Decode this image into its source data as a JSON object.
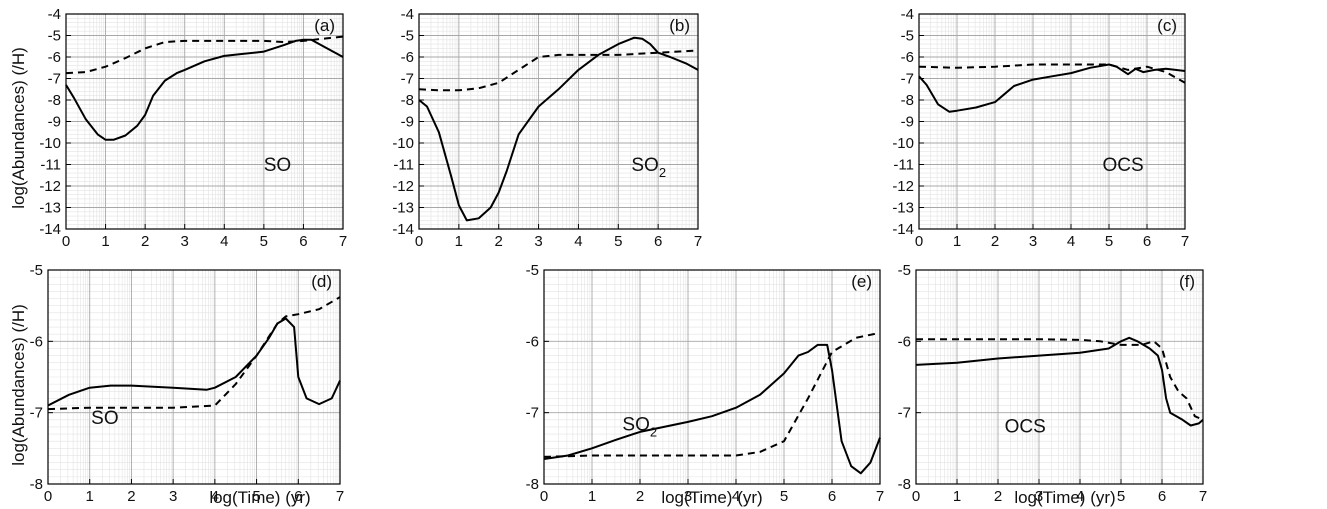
{
  "figure": {
    "ylabel": "log(Abundances) (/H)",
    "xlabel": "log(Time) (yr)"
  },
  "chart_data": [
    {
      "type": "line",
      "panel": "(a)",
      "species": "SO",
      "species_sub": "",
      "xlim": [
        0,
        7
      ],
      "ylim": [
        -14,
        -4
      ],
      "xticks": [
        0,
        1,
        2,
        3,
        4,
        5,
        6,
        7
      ],
      "yticks": [
        -14,
        -13,
        -12,
        -11,
        -10,
        -9,
        -8,
        -7,
        -6,
        -5,
        -4
      ],
      "grid": true,
      "series": [
        {
          "style": "solid",
          "points": [
            [
              0,
              -7.3
            ],
            [
              0.2,
              -7.9
            ],
            [
              0.5,
              -8.9
            ],
            [
              0.8,
              -9.6
            ],
            [
              1.0,
              -9.85
            ],
            [
              1.2,
              -9.85
            ],
            [
              1.5,
              -9.65
            ],
            [
              1.8,
              -9.2
            ],
            [
              2.0,
              -8.7
            ],
            [
              2.2,
              -7.8
            ],
            [
              2.5,
              -7.1
            ],
            [
              2.8,
              -6.75
            ],
            [
              3.0,
              -6.6
            ],
            [
              3.5,
              -6.2
            ],
            [
              4.0,
              -5.95
            ],
            [
              4.5,
              -5.85
            ],
            [
              5.0,
              -5.75
            ],
            [
              5.5,
              -5.45
            ],
            [
              5.8,
              -5.25
            ],
            [
              6.0,
              -5.2
            ],
            [
              6.2,
              -5.2
            ],
            [
              6.5,
              -5.5
            ],
            [
              7.0,
              -6.0
            ]
          ]
        },
        {
          "style": "dashed",
          "points": [
            [
              0,
              -6.75
            ],
            [
              0.5,
              -6.7
            ],
            [
              1.0,
              -6.45
            ],
            [
              1.5,
              -6.05
            ],
            [
              2.0,
              -5.6
            ],
            [
              2.5,
              -5.3
            ],
            [
              3.0,
              -5.25
            ],
            [
              4.0,
              -5.25
            ],
            [
              5.0,
              -5.25
            ],
            [
              5.5,
              -5.3
            ],
            [
              6.0,
              -5.25
            ],
            [
              6.5,
              -5.15
            ],
            [
              7.0,
              -5.05
            ]
          ]
        }
      ]
    },
    {
      "type": "line",
      "panel": "(b)",
      "species": "SO",
      "species_sub": "2",
      "xlim": [
        0,
        7
      ],
      "ylim": [
        -14,
        -4
      ],
      "xticks": [
        0,
        1,
        2,
        3,
        4,
        5,
        6,
        7
      ],
      "yticks": [
        -14,
        -13,
        -12,
        -11,
        -10,
        -9,
        -8,
        -7,
        -6,
        -5,
        -4
      ],
      "grid": true,
      "series": [
        {
          "style": "solid",
          "points": [
            [
              0,
              -8.0
            ],
            [
              0.2,
              -8.3
            ],
            [
              0.5,
              -9.5
            ],
            [
              0.8,
              -11.5
            ],
            [
              1.0,
              -12.9
            ],
            [
              1.2,
              -13.6
            ],
            [
              1.5,
              -13.5
            ],
            [
              1.8,
              -13.0
            ],
            [
              2.0,
              -12.3
            ],
            [
              2.2,
              -11.3
            ],
            [
              2.5,
              -9.6
            ],
            [
              3.0,
              -8.3
            ],
            [
              3.5,
              -7.5
            ],
            [
              4.0,
              -6.6
            ],
            [
              4.5,
              -5.9
            ],
            [
              5.0,
              -5.4
            ],
            [
              5.4,
              -5.1
            ],
            [
              5.6,
              -5.15
            ],
            [
              5.8,
              -5.4
            ],
            [
              6.0,
              -5.8
            ],
            [
              6.3,
              -6.0
            ],
            [
              6.7,
              -6.3
            ],
            [
              7.0,
              -6.6
            ]
          ]
        },
        {
          "style": "dashed",
          "points": [
            [
              0,
              -7.5
            ],
            [
              0.5,
              -7.55
            ],
            [
              1.0,
              -7.55
            ],
            [
              1.5,
              -7.45
            ],
            [
              2.0,
              -7.2
            ],
            [
              2.5,
              -6.6
            ],
            [
              3.0,
              -6.0
            ],
            [
              3.5,
              -5.9
            ],
            [
              4.0,
              -5.9
            ],
            [
              5.0,
              -5.9
            ],
            [
              6.0,
              -5.8
            ],
            [
              7.0,
              -5.7
            ]
          ]
        }
      ]
    },
    {
      "type": "line",
      "panel": "(c)",
      "species": "OCS",
      "species_sub": "",
      "xlim": [
        0,
        7
      ],
      "ylim": [
        -14,
        -4
      ],
      "xticks": [
        0,
        1,
        2,
        3,
        4,
        5,
        6,
        7
      ],
      "yticks": [
        -14,
        -13,
        -12,
        -11,
        -10,
        -9,
        -8,
        -7,
        -6,
        -5,
        -4
      ],
      "grid": true,
      "series": [
        {
          "style": "solid",
          "points": [
            [
              0,
              -6.9
            ],
            [
              0.2,
              -7.3
            ],
            [
              0.5,
              -8.2
            ],
            [
              0.8,
              -8.55
            ],
            [
              1.0,
              -8.5
            ],
            [
              1.5,
              -8.35
            ],
            [
              2.0,
              -8.1
            ],
            [
              2.2,
              -7.8
            ],
            [
              2.5,
              -7.35
            ],
            [
              3.0,
              -7.05
            ],
            [
              3.5,
              -6.9
            ],
            [
              4.0,
              -6.75
            ],
            [
              4.5,
              -6.5
            ],
            [
              5.0,
              -6.35
            ],
            [
              5.2,
              -6.45
            ],
            [
              5.5,
              -6.8
            ],
            [
              5.7,
              -6.55
            ],
            [
              5.9,
              -6.7
            ],
            [
              6.2,
              -6.6
            ],
            [
              6.5,
              -6.55
            ],
            [
              7.0,
              -6.65
            ]
          ]
        },
        {
          "style": "dashed",
          "points": [
            [
              0,
              -6.45
            ],
            [
              1.0,
              -6.5
            ],
            [
              2.0,
              -6.45
            ],
            [
              3.0,
              -6.35
            ],
            [
              4.0,
              -6.35
            ],
            [
              5.0,
              -6.35
            ],
            [
              5.5,
              -6.6
            ],
            [
              6.0,
              -6.45
            ],
            [
              6.5,
              -6.7
            ],
            [
              7.0,
              -7.2
            ]
          ]
        }
      ]
    },
    {
      "type": "line",
      "panel": "(d)",
      "species": "SO",
      "species_sub": "",
      "xlim": [
        0,
        7
      ],
      "ylim": [
        -8,
        -5
      ],
      "xticks": [
        0,
        1,
        2,
        3,
        4,
        5,
        6,
        7
      ],
      "yticks": [
        -8,
        -7,
        -6,
        -5
      ],
      "grid": true,
      "series": [
        {
          "style": "solid",
          "points": [
            [
              0,
              -6.9
            ],
            [
              0.5,
              -6.75
            ],
            [
              1.0,
              -6.65
            ],
            [
              1.5,
              -6.62
            ],
            [
              2.0,
              -6.62
            ],
            [
              3.0,
              -6.65
            ],
            [
              3.8,
              -6.68
            ],
            [
              4.0,
              -6.65
            ],
            [
              4.5,
              -6.5
            ],
            [
              5.0,
              -6.2
            ],
            [
              5.3,
              -5.95
            ],
            [
              5.5,
              -5.75
            ],
            [
              5.7,
              -5.68
            ],
            [
              5.9,
              -5.8
            ],
            [
              6.0,
              -6.5
            ],
            [
              6.2,
              -6.8
            ],
            [
              6.5,
              -6.88
            ],
            [
              6.8,
              -6.8
            ],
            [
              7.0,
              -6.55
            ]
          ]
        },
        {
          "style": "dashed",
          "points": [
            [
              0,
              -6.95
            ],
            [
              1.0,
              -6.93
            ],
            [
              2.0,
              -6.93
            ],
            [
              3.0,
              -6.93
            ],
            [
              4.0,
              -6.9
            ],
            [
              4.5,
              -6.6
            ],
            [
              5.0,
              -6.2
            ],
            [
              5.5,
              -5.75
            ],
            [
              5.7,
              -5.65
            ],
            [
              6.0,
              -5.62
            ],
            [
              6.5,
              -5.55
            ],
            [
              7.0,
              -5.38
            ]
          ]
        }
      ]
    },
    {
      "type": "line",
      "panel": "(e)",
      "species": "SO",
      "species_sub": "2",
      "xlim": [
        0,
        7
      ],
      "ylim": [
        -8,
        -5
      ],
      "xticks": [
        0,
        1,
        2,
        3,
        4,
        5,
        6,
        7
      ],
      "yticks": [
        -8,
        -7,
        -6,
        -5
      ],
      "grid": true,
      "series": [
        {
          "style": "solid",
          "points": [
            [
              0,
              -7.65
            ],
            [
              0.5,
              -7.6
            ],
            [
              1.0,
              -7.5
            ],
            [
              1.5,
              -7.38
            ],
            [
              2.0,
              -7.27
            ],
            [
              2.5,
              -7.2
            ],
            [
              3.0,
              -7.13
            ],
            [
              3.5,
              -7.05
            ],
            [
              4.0,
              -6.93
            ],
            [
              4.5,
              -6.75
            ],
            [
              5.0,
              -6.45
            ],
            [
              5.3,
              -6.2
            ],
            [
              5.5,
              -6.15
            ],
            [
              5.7,
              -6.05
            ],
            [
              5.9,
              -6.05
            ],
            [
              6.0,
              -6.4
            ],
            [
              6.2,
              -7.4
            ],
            [
              6.4,
              -7.75
            ],
            [
              6.6,
              -7.85
            ],
            [
              6.8,
              -7.7
            ],
            [
              7.0,
              -7.35
            ]
          ]
        },
        {
          "style": "dashed",
          "points": [
            [
              0,
              -7.62
            ],
            [
              1.0,
              -7.6
            ],
            [
              2.0,
              -7.6
            ],
            [
              3.0,
              -7.6
            ],
            [
              4.0,
              -7.6
            ],
            [
              4.5,
              -7.55
            ],
            [
              5.0,
              -7.4
            ],
            [
              5.5,
              -6.8
            ],
            [
              6.0,
              -6.15
            ],
            [
              6.5,
              -5.95
            ],
            [
              7.0,
              -5.88
            ]
          ]
        }
      ]
    },
    {
      "type": "line",
      "panel": "(f)",
      "species": "OCS",
      "species_sub": "",
      "xlim": [
        0,
        7
      ],
      "ylim": [
        -8,
        -5
      ],
      "xticks": [
        0,
        1,
        2,
        3,
        4,
        5,
        6,
        7
      ],
      "yticks": [
        -8,
        -7,
        -6,
        -5
      ],
      "grid": true,
      "series": [
        {
          "style": "solid",
          "points": [
            [
              0,
              -6.33
            ],
            [
              1.0,
              -6.3
            ],
            [
              2.0,
              -6.24
            ],
            [
              3.0,
              -6.2
            ],
            [
              4.0,
              -6.16
            ],
            [
              4.7,
              -6.1
            ],
            [
              5.0,
              -6.0
            ],
            [
              5.2,
              -5.95
            ],
            [
              5.4,
              -6.0
            ],
            [
              5.7,
              -6.1
            ],
            [
              5.9,
              -6.2
            ],
            [
              6.0,
              -6.4
            ],
            [
              6.1,
              -6.8
            ],
            [
              6.2,
              -7.0
            ],
            [
              6.5,
              -7.1
            ],
            [
              6.7,
              -7.18
            ],
            [
              6.9,
              -7.15
            ],
            [
              7.0,
              -7.1
            ]
          ]
        },
        {
          "style": "dashed",
          "points": [
            [
              0,
              -5.97
            ],
            [
              1.0,
              -5.97
            ],
            [
              2.0,
              -5.97
            ],
            [
              3.0,
              -5.97
            ],
            [
              4.0,
              -5.98
            ],
            [
              4.5,
              -6.0
            ],
            [
              5.0,
              -6.05
            ],
            [
              5.5,
              -6.05
            ],
            [
              5.8,
              -6.0
            ],
            [
              6.0,
              -6.1
            ],
            [
              6.2,
              -6.5
            ],
            [
              6.4,
              -6.7
            ],
            [
              6.6,
              -6.8
            ],
            [
              6.8,
              -7.05
            ],
            [
              7.0,
              -7.1
            ]
          ]
        }
      ]
    }
  ]
}
